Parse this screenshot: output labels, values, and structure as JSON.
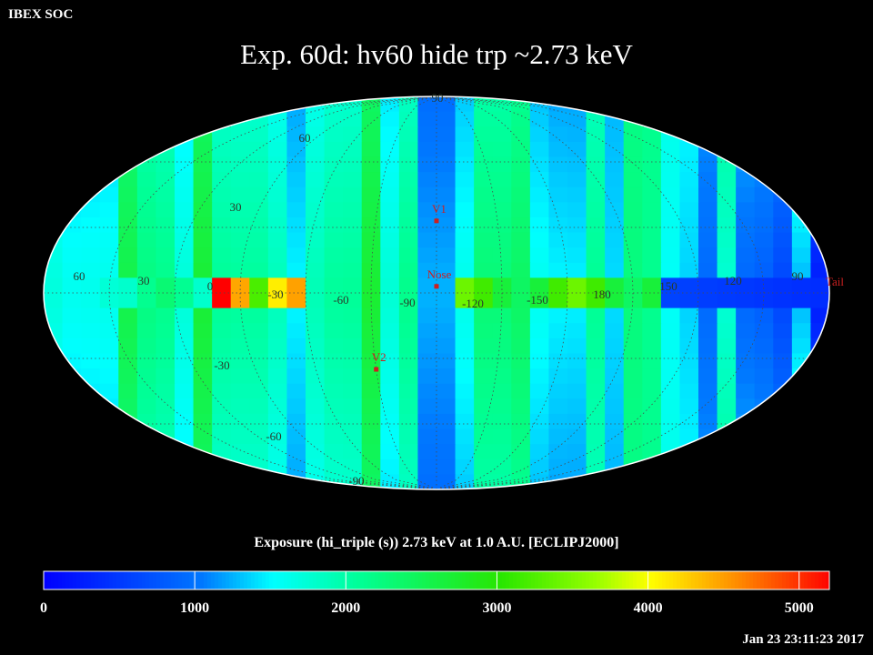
{
  "header": {
    "org": "IBEX SOC",
    "timestamp": "Jan 23 23:11:23 2017"
  },
  "chart_data": {
    "type": "heatmap",
    "projection": "Mollweide (Aitoff-like) all-sky map",
    "title": "Exp.   60d: hv60 hide trp ~2.73 keV",
    "colorbar_title": "Exposure (hi_triple (s))  2.73 keV at 1.0 A.U. [ECLIPJ2000]",
    "colorbar_ticks": [
      0,
      1000,
      2000,
      3000,
      4000,
      5000
    ],
    "colorbar_range": [
      0,
      5200
    ],
    "latitude_labels": [
      {
        "text": "90"
      },
      {
        "text": "60"
      },
      {
        "text": "30"
      },
      {
        "text": "-30"
      },
      {
        "text": "-60"
      },
      {
        "text": "-90"
      }
    ],
    "longitude_labels": [
      {
        "text": "60"
      },
      {
        "text": "30"
      },
      {
        "text": "0"
      },
      {
        "text": "-30"
      },
      {
        "text": "-60"
      },
      {
        "text": "-90"
      },
      {
        "text": "-120"
      },
      {
        "text": "-150"
      },
      {
        "text": "180"
      },
      {
        "text": "150"
      },
      {
        "text": "120"
      },
      {
        "text": "90"
      }
    ],
    "markers": [
      {
        "label": "V1",
        "lon": -90,
        "lat": 33
      },
      {
        "label": "Nose",
        "lon": -90,
        "lat": 3
      },
      {
        "label": "V2",
        "lon": -60,
        "lat": -35
      },
      {
        "label": "Tail"
      }
    ],
    "grid": true,
    "colors": {
      "background": "#000000",
      "grid": "#4a4a4a",
      "marker": "#cc2020",
      "outline": "#ffffff"
    }
  }
}
